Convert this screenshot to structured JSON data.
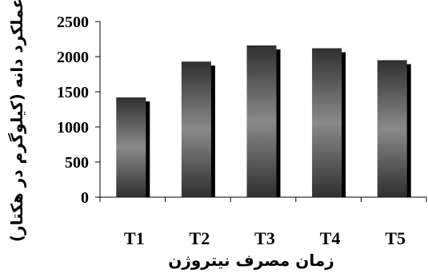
{
  "chart_data": {
    "type": "bar",
    "title": "",
    "categories": [
      "T1",
      "T2",
      "T3",
      "T4",
      "T5"
    ],
    "values": [
      1420,
      1930,
      2160,
      2120,
      1950
    ],
    "xlabel": "زمان مصرف نیتروژن",
    "ylabel": "عملکرد دانه (کیلوگرم در هکتار)",
    "ylim": [
      0,
      2500
    ],
    "yticks": [
      "0",
      "500",
      "1000",
      "1500",
      "2000",
      "2500"
    ],
    "grid": false,
    "legend": "none",
    "colors": {
      "bar_center": "#8a8a8a",
      "bar_edge": "#2f2f2f",
      "bar_shadow": "#000000",
      "axis": "#000000"
    }
  }
}
